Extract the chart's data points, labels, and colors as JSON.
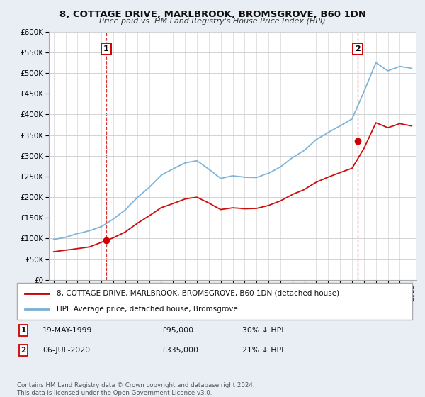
{
  "title": "8, COTTAGE DRIVE, MARLBROOK, BROMSGROVE, B60 1DN",
  "subtitle": "Price paid vs. HM Land Registry's House Price Index (HPI)",
  "legend_line1": "8, COTTAGE DRIVE, MARLBROOK, BROMSGROVE, B60 1DN (detached house)",
  "legend_line2": "HPI: Average price, detached house, Bromsgrove",
  "annotation1_label": "1",
  "annotation1_date": "19-MAY-1999",
  "annotation1_price": "£95,000",
  "annotation1_hpi": "30% ↓ HPI",
  "annotation2_label": "2",
  "annotation2_date": "06-JUL-2020",
  "annotation2_price": "£335,000",
  "annotation2_hpi": "21% ↓ HPI",
  "footer": "Contains HM Land Registry data © Crown copyright and database right 2024.\nThis data is licensed under the Open Government Licence v3.0.",
  "sale1_year": 1999.38,
  "sale1_price": 95000,
  "sale2_year": 2020.5,
  "sale2_price": 335000,
  "ylim": [
    0,
    600000
  ],
  "yticks": [
    0,
    50000,
    100000,
    150000,
    200000,
    250000,
    300000,
    350000,
    400000,
    450000,
    500000,
    550000,
    600000
  ],
  "xlim_min": 1994.6,
  "xlim_max": 2025.4,
  "background_color": "#e8eef4",
  "plot_bg_color": "#ffffff",
  "line_red": "#cc0000",
  "line_blue": "#7ab0d4",
  "marker_color": "#cc0000",
  "vline_color": "#cc0000",
  "hpi_years": [
    1995,
    1996,
    1997,
    1998,
    1999,
    2000,
    2001,
    2002,
    2003,
    2004,
    2005,
    2006,
    2007,
    2008,
    2009,
    2010,
    2011,
    2012,
    2013,
    2014,
    2015,
    2016,
    2017,
    2018,
    2019,
    2020,
    2021,
    2022,
    2023,
    2024,
    2025
  ],
  "hpi_vals": [
    98000,
    103000,
    112000,
    120000,
    130000,
    148000,
    170000,
    200000,
    225000,
    255000,
    270000,
    285000,
    290000,
    270000,
    248000,
    255000,
    252000,
    252000,
    262000,
    278000,
    300000,
    318000,
    345000,
    362000,
    378000,
    395000,
    460000,
    530000,
    510000,
    520000,
    515000
  ],
  "red_years": [
    1995,
    1996,
    1997,
    1998,
    1999,
    2000,
    2001,
    2002,
    2003,
    2004,
    2005,
    2006,
    2007,
    2008,
    2009,
    2010,
    2011,
    2012,
    2013,
    2014,
    2015,
    2016,
    2017,
    2018,
    2019,
    2020,
    2021,
    2022,
    2023,
    2024,
    2025
  ],
  "red_vals": [
    68000,
    72000,
    76000,
    80000,
    91000,
    102000,
    116000,
    137000,
    155000,
    175000,
    185000,
    196000,
    200000,
    186000,
    170000,
    174000,
    172000,
    173000,
    180000,
    191000,
    207000,
    219000,
    237000,
    249000,
    260000,
    270000,
    318000,
    380000,
    368000,
    378000,
    372000
  ]
}
